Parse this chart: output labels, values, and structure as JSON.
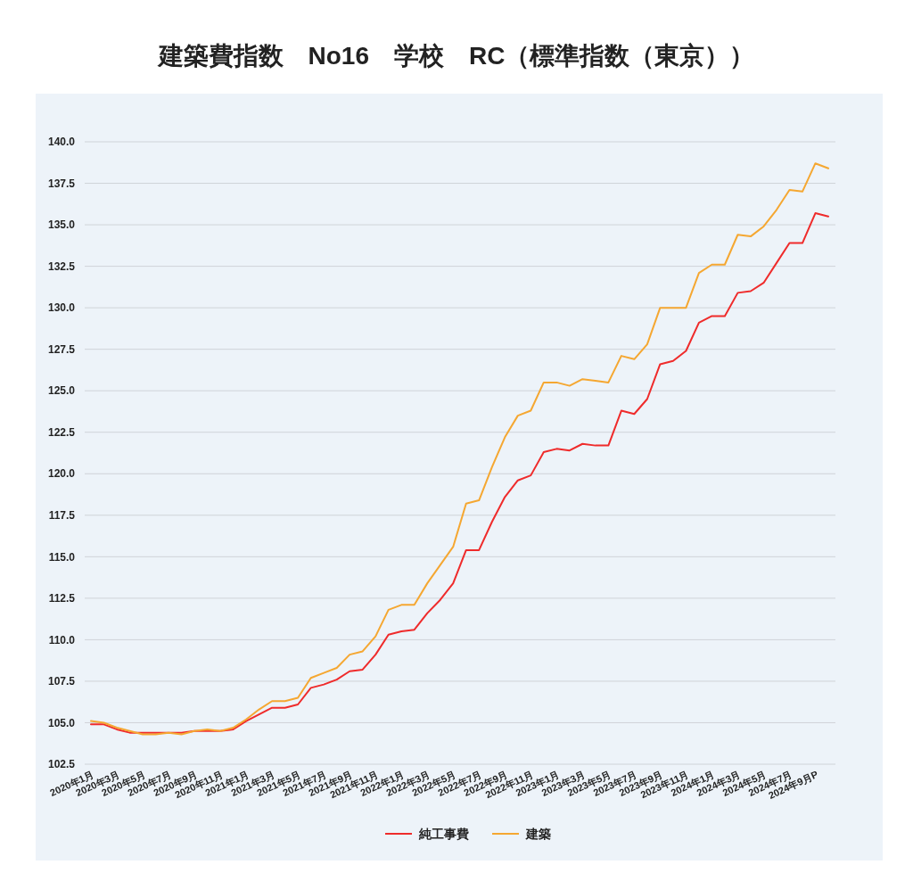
{
  "chart_data": {
    "type": "line",
    "title": "建築費指数　No16　学校　RC（標準指数（東京））",
    "categories": [
      "2020年1月",
      null,
      "2020年3月",
      null,
      "2020年5月",
      null,
      "2020年7月",
      null,
      "2020年9月",
      null,
      "2020年11月",
      null,
      "2021年1月",
      null,
      "2021年3月",
      null,
      "2021年5月",
      null,
      "2021年7月",
      null,
      "2021年9月",
      null,
      "2021年11月",
      null,
      "2022年1月",
      null,
      "2022年3月",
      null,
      "2022年5月",
      null,
      "2022年7月",
      null,
      "2022年9月",
      null,
      "2022年11月",
      null,
      "2023年1月",
      null,
      "2023年3月",
      null,
      "2023年5月",
      null,
      "2023年7月",
      null,
      "2023年9月",
      null,
      "2023年11月",
      null,
      "2024年1月",
      null,
      "2024年3月",
      null,
      "2024年5月",
      null,
      "2024年7月",
      null,
      "2024年9月P",
      null
    ],
    "series": [
      {
        "name": "純工事費",
        "color": "#ef2b2b",
        "values": [
          104.9,
          104.9,
          104.6,
          104.4,
          104.4,
          104.4,
          104.4,
          104.4,
          104.5,
          104.5,
          104.5,
          104.6,
          105.1,
          105.5,
          105.9,
          105.9,
          106.1,
          107.1,
          107.3,
          107.6,
          108.1,
          108.2,
          109.1,
          110.3,
          110.5,
          110.6,
          111.6,
          112.4,
          113.4,
          115.4,
          115.4,
          117.1,
          118.6,
          119.6,
          119.9,
          121.3,
          121.5,
          121.4,
          121.8,
          121.7,
          121.7,
          123.8,
          123.6,
          124.5,
          126.6,
          126.8,
          127.4,
          129.1,
          129.5,
          129.5,
          130.9,
          131.0,
          131.5,
          132.7,
          133.9,
          133.9,
          135.7,
          135.5
        ]
      },
      {
        "name": "建築",
        "color": "#f5a731",
        "values": [
          105.1,
          105.0,
          104.7,
          104.5,
          104.3,
          104.3,
          104.4,
          104.3,
          104.5,
          104.6,
          104.5,
          104.7,
          105.2,
          105.8,
          106.3,
          106.3,
          106.5,
          107.7,
          108.0,
          108.3,
          109.1,
          109.3,
          110.2,
          111.8,
          112.1,
          112.1,
          113.4,
          114.5,
          115.6,
          118.2,
          118.4,
          120.4,
          122.2,
          123.5,
          123.8,
          125.5,
          125.5,
          125.3,
          125.7,
          125.6,
          125.5,
          127.1,
          126.9,
          127.8,
          130.0,
          130.0,
          130.0,
          132.1,
          132.6,
          132.6,
          134.4,
          134.3,
          134.9,
          135.9,
          137.1,
          137.0,
          138.7,
          138.4
        ]
      }
    ],
    "ylim": [
      102.5,
      140
    ],
    "yticks": [
      {
        "value": 102.5,
        "label": "102.5"
      },
      {
        "value": 105,
        "label": "105.0"
      },
      {
        "value": 107.5,
        "label": "107.5"
      },
      {
        "value": 110,
        "label": "110.0"
      },
      {
        "value": 112.5,
        "label": "112.5"
      },
      {
        "value": 115,
        "label": "115.0"
      },
      {
        "value": 117.5,
        "label": "117.5"
      },
      {
        "value": 120,
        "label": "120.0"
      },
      {
        "value": 122.5,
        "label": "122.5"
      },
      {
        "value": 125,
        "label": "125.0"
      },
      {
        "value": 127.5,
        "label": "127.5"
      },
      {
        "value": 130,
        "label": "130.0"
      },
      {
        "value": 132.5,
        "label": "132.5"
      },
      {
        "value": 135,
        "label": "135.0"
      },
      {
        "value": 137.5,
        "label": "137.5"
      },
      {
        "value": 140,
        "label": "140.0"
      }
    ],
    "grid": "y",
    "legend": "bottom",
    "marker": "none",
    "line_style": "solid"
  }
}
